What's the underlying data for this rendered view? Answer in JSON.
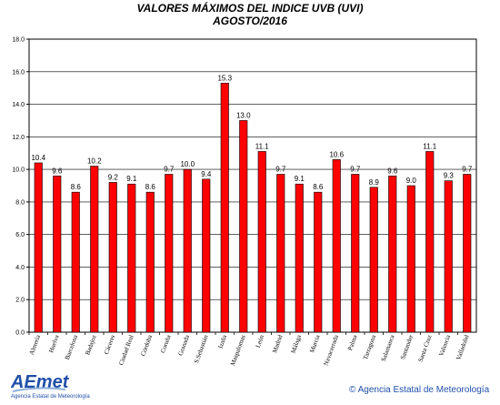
{
  "chart_data": {
    "type": "bar",
    "title": "VALORES MÁXIMOS DEL INDICE UVB (UVI)",
    "subtitle": "AGOSTO/2016",
    "xlabel": "",
    "ylabel": "",
    "ylim": [
      0,
      18
    ],
    "yticks": [
      "0.0",
      "2.0",
      "4.0",
      "6.0",
      "8.0",
      "10.0",
      "12.0",
      "14.0",
      "16.0",
      "18.0"
    ],
    "grid": true,
    "legend": "none",
    "bar_color": "#ff0000",
    "categories": [
      "Almería",
      "Huelva",
      "Barcelona",
      "Badajoz",
      "Cáceres",
      "Ciudad Real",
      "Córdoba",
      "Coruña",
      "Granada",
      "S.Sebastián",
      "Izaña",
      "Maspalomas",
      "León",
      "Madrid",
      "Málaga",
      "Murcia",
      "Navacerrada",
      "Palma",
      "Tarragona",
      "Salamanca",
      "Santander",
      "Santa Cruz",
      "Valencia",
      "Valladolid"
    ],
    "values": [
      10.4,
      9.6,
      8.6,
      10.2,
      9.2,
      9.1,
      8.6,
      9.7,
      10.0,
      9.4,
      15.3,
      13.0,
      11.1,
      9.7,
      9.1,
      8.6,
      10.6,
      9.7,
      8.9,
      9.6,
      9.0,
      11.1,
      9.3,
      9.7
    ],
    "value_labels": [
      "10.4",
      "9.6",
      "8.6",
      "10.2",
      "9.2",
      "9.1",
      "8.6",
      "9.7",
      "10.0",
      "9.4",
      "15.3",
      "13.0",
      "11.1",
      "9.7",
      "9.1",
      "8.6",
      "10.6",
      "9.7",
      "8.9",
      "9.6",
      "9.0",
      "11.1",
      "9.3",
      "9.7"
    ]
  },
  "footer": {
    "logo_text": "AEmet",
    "logo_subtitle": "Agencia Estatal de Meteorología",
    "copyright": "© Agencia Estatal de Meteorología"
  }
}
